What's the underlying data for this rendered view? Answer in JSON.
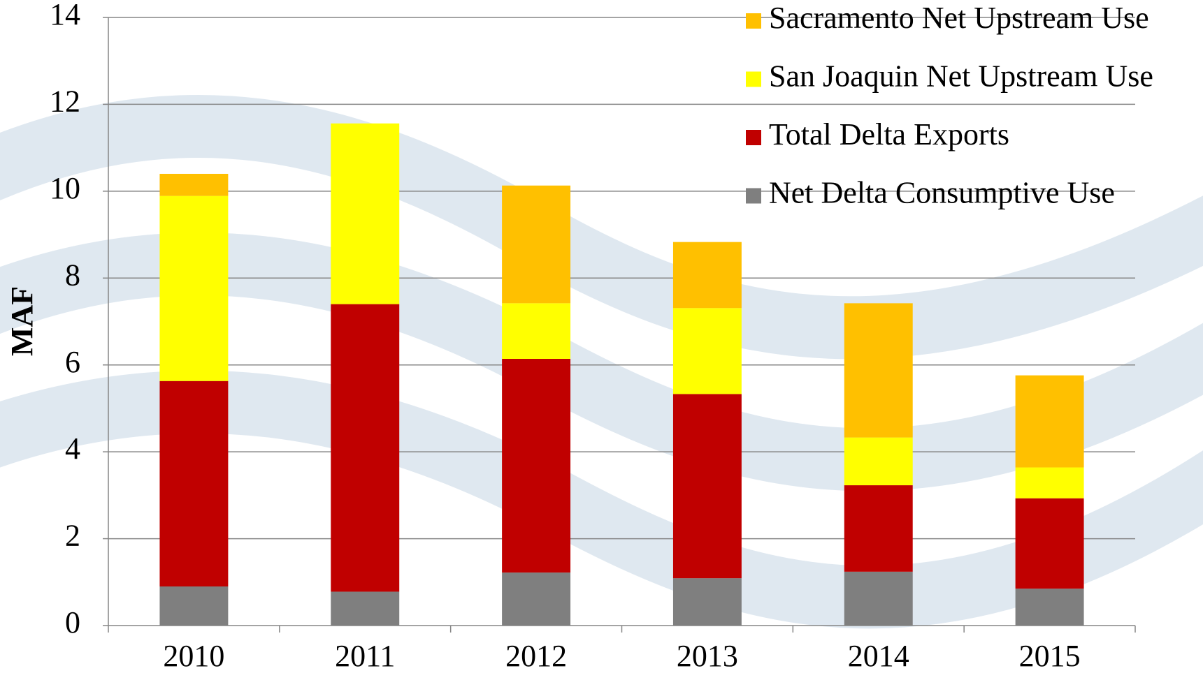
{
  "chart_data": {
    "type": "stacked_bar",
    "y_label": "MAF",
    "categories": [
      "2010",
      "2011",
      "2012",
      "2013",
      "2014",
      "2015"
    ],
    "series": [
      {
        "name": "Net Delta Consumptive Use",
        "color": "#7f7f7f",
        "values": [
          0.9,
          0.78,
          1.22,
          1.09,
          1.24,
          0.85
        ]
      },
      {
        "name": "Total Delta Exports",
        "color": "#c00000",
        "values": [
          4.73,
          6.62,
          4.92,
          4.24,
          1.99,
          2.08
        ]
      },
      {
        "name": "San Joaquin Net Upstream Use",
        "color": "#ffff00",
        "values": [
          4.26,
          4.16,
          1.28,
          1.98,
          1.1,
          0.71
        ]
      },
      {
        "name": "Sacramento Net Upstream Use",
        "color": "#ffc000",
        "values": [
          0.51,
          0,
          2.71,
          1.52,
          3.09,
          2.12
        ]
      }
    ],
    "ylim": [
      0,
      14
    ],
    "yticks": [
      0,
      2,
      4,
      6,
      8,
      10,
      12,
      14
    ],
    "grid": true
  }
}
